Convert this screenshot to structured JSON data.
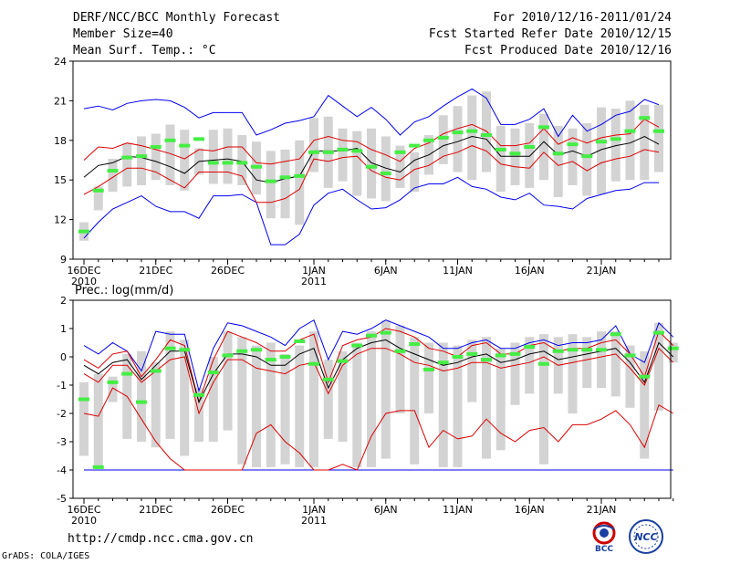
{
  "header": {
    "title": "DERF/NCC/BCC Monthly Forecast",
    "member_size": "Member Size=40",
    "variable": "Mean Surf. Temp.: °C",
    "period": "For 2010/12/16-2011/01/24",
    "start_date": "Fcst Started Refer Date 2010/12/15",
    "produced_date": "Fcst Produced Date 2010/12/16"
  },
  "footer": {
    "url": "http://cmdp.ncc.cma.gov.cn",
    "credit": "GrADS: COLA/IGES"
  },
  "logos": {
    "left_text": "BCC",
    "right_text": "NCC"
  },
  "colors": {
    "envelope": "#0000ee",
    "percentile": "#dd0000",
    "mean": "#000000",
    "observed": "#44ee44",
    "box": "#d3d3d3"
  },
  "chart_data": [
    {
      "type": "box",
      "title": "Mean Surf. Temp.: °C",
      "ylim": [
        9,
        24
      ],
      "yticks": [
        "9",
        "12",
        "15",
        "18",
        "21",
        "24"
      ],
      "xticks": [
        {
          "day": 0,
          "label": "16DEC",
          "sub": "2010"
        },
        {
          "day": 5,
          "label": "21DEC",
          "sub": ""
        },
        {
          "day": 10,
          "label": "26DEC",
          "sub": ""
        },
        {
          "day": 16,
          "label": "1JAN",
          "sub": "2011"
        },
        {
          "day": 21,
          "label": "6JAN",
          "sub": ""
        },
        {
          "day": 26,
          "label": "11JAN",
          "sub": ""
        },
        {
          "day": 31,
          "label": "16JAN",
          "sub": ""
        },
        {
          "day": 36,
          "label": "21JAN",
          "sub": ""
        }
      ],
      "max": [
        20.4,
        20.6,
        20.3,
        20.8,
        21.0,
        21.1,
        21.0,
        20.5,
        19.7,
        20.1,
        20.1,
        20.1,
        18.4,
        18.8,
        19.3,
        19.5,
        19.8,
        21.4,
        20.6,
        19.8,
        20.5,
        19.6,
        18.4,
        19.4,
        19.8,
        20.6,
        21.3,
        21.9,
        21.2,
        19.2,
        19.2,
        19.6,
        20.4,
        18.3,
        19.9,
        18.7,
        19.2,
        19.9,
        20.2,
        21.1,
        20.7
      ],
      "p90": [
        16.5,
        17.5,
        17.4,
        17.8,
        17.6,
        17.3,
        17.0,
        16.6,
        17.3,
        17.2,
        17.5,
        17.5,
        16.3,
        16.2,
        16.4,
        16.6,
        18.0,
        18.3,
        18.0,
        17.9,
        17.3,
        16.9,
        16.4,
        17.4,
        17.8,
        18.5,
        18.9,
        19.2,
        18.7,
        17.6,
        17.6,
        17.8,
        18.9,
        17.7,
        18.2,
        17.8,
        18.2,
        18.4,
        18.5,
        19.6,
        19.0
      ],
      "mean": [
        15.2,
        16.1,
        16.3,
        16.8,
        16.7,
        16.4,
        16.0,
        15.5,
        16.4,
        16.5,
        16.6,
        16.4,
        15.0,
        14.8,
        15.1,
        15.3,
        17.2,
        17.2,
        17.2,
        17.4,
        16.3,
        15.9,
        15.6,
        16.5,
        16.9,
        17.6,
        17.9,
        18.3,
        18.1,
        16.8,
        16.8,
        16.8,
        17.9,
        16.9,
        17.2,
        16.8,
        17.3,
        17.6,
        17.8,
        18.3,
        17.7
      ],
      "p10": [
        13.9,
        14.5,
        15.2,
        15.9,
        15.9,
        15.6,
        15.0,
        14.4,
        15.6,
        15.6,
        15.6,
        15.3,
        13.3,
        13.3,
        13.6,
        14.3,
        16.6,
        16.4,
        16.7,
        16.8,
        15.7,
        15.2,
        15.0,
        15.8,
        16.1,
        16.8,
        17.1,
        17.6,
        17.2,
        16.2,
        16.0,
        15.9,
        17.1,
        16.1,
        16.4,
        15.7,
        16.3,
        16.6,
        16.8,
        17.3,
        17.1
      ],
      "min": [
        10.6,
        11.8,
        12.8,
        13.3,
        13.8,
        13.0,
        12.6,
        12.6,
        12.1,
        13.8,
        13.8,
        13.9,
        13.3,
        10.1,
        10.1,
        10.9,
        13.1,
        14.0,
        14.3,
        13.5,
        12.8,
        12.9,
        13.5,
        14.4,
        14.7,
        14.7,
        15.2,
        14.5,
        14.3,
        13.7,
        13.5,
        14.0,
        13.1,
        13.0,
        12.8,
        13.6,
        13.9,
        14.2,
        14.3,
        14.8,
        14.8
      ],
      "box_top": [
        11.8,
        14.5,
        16.6,
        17.8,
        18.3,
        18.5,
        19.2,
        18.8,
        17.4,
        18.8,
        18.9,
        18.4,
        17.9,
        17.2,
        17.3,
        18.0,
        19.7,
        19.8,
        18.9,
        18.7,
        18.9,
        18.3,
        17.6,
        17.1,
        18.4,
        19.9,
        20.6,
        21.4,
        21.7,
        19.1,
        18.9,
        19.3,
        20.0,
        19.1,
        18.9,
        19.3,
        20.5,
        20.4,
        21.0,
        20.7,
        20.7
      ],
      "box_bottom": [
        10.4,
        12.7,
        14.1,
        14.5,
        14.6,
        15.0,
        14.6,
        14.2,
        15.4,
        14.7,
        14.7,
        14.6,
        13.9,
        12.1,
        12.1,
        11.6,
        15.6,
        14.4,
        14.9,
        13.8,
        13.6,
        13.4,
        14.4,
        14.1,
        15.4,
        16.2,
        15.6,
        15.0,
        15.6,
        14.1,
        14.6,
        14.4,
        15.0,
        13.7,
        14.6,
        13.8,
        13.9,
        14.9,
        15.0,
        15.0,
        15.6
      ],
      "observed": [
        11.1,
        14.2,
        15.7,
        16.7,
        16.8,
        17.5,
        18.0,
        17.6,
        18.1,
        16.3,
        16.3,
        16.3,
        16.0,
        14.9,
        15.2,
        15.3,
        17.1,
        17.1,
        17.3,
        17.2,
        16.0,
        15.5,
        17.1,
        17.6,
        18.0,
        18.2,
        18.6,
        18.7,
        18.4,
        17.3,
        17.0,
        17.5,
        19.0,
        17.0,
        17.7,
        16.8,
        17.9,
        18.1,
        18.7,
        19.7,
        18.7
      ]
    },
    {
      "type": "box",
      "title": "Prec.: log(mm/d)",
      "ylim": [
        -5,
        2
      ],
      "yticks": [
        "-5",
        "-4",
        "-3",
        "-2",
        "-1",
        "0",
        "1",
        "2"
      ],
      "xticks": [
        {
          "day": 0,
          "label": "16DEC",
          "sub": "2010"
        },
        {
          "day": 5,
          "label": "21DEC",
          "sub": ""
        },
        {
          "day": 10,
          "label": "26DEC",
          "sub": ""
        },
        {
          "day": 16,
          "label": "1JAN",
          "sub": "2011"
        },
        {
          "day": 21,
          "label": "6JAN",
          "sub": ""
        },
        {
          "day": 26,
          "label": "11JAN",
          "sub": ""
        },
        {
          "day": 31,
          "label": "16JAN",
          "sub": ""
        },
        {
          "day": 36,
          "label": "21JAN",
          "sub": ""
        }
      ],
      "max": [
        0.4,
        0.1,
        0.5,
        0.2,
        -0.5,
        0.9,
        0.8,
        0.8,
        -1.2,
        0.3,
        1.2,
        1.1,
        0.9,
        0.7,
        0.4,
        1.0,
        1.3,
        -0.1,
        0.9,
        0.8,
        1.0,
        1.3,
        1.1,
        0.9,
        0.7,
        0.3,
        0.3,
        0.5,
        0.6,
        0.3,
        0.3,
        0.5,
        0.6,
        0.4,
        0.5,
        0.5,
        0.6,
        1.1,
        0.1,
        -0.2,
        1.2,
        0.7
      ],
      "p90": [
        -0.1,
        -0.4,
        0.1,
        0.2,
        -0.7,
        -0.1,
        0.6,
        0.4,
        -1.6,
        -0.1,
        0.9,
        0.7,
        0.5,
        0.2,
        0.2,
        0.6,
        0.8,
        -0.9,
        0.4,
        0.6,
        0.7,
        1.0,
        0.9,
        0.7,
        0.3,
        0.2,
        0.0,
        0.4,
        0.5,
        0.1,
        0.1,
        0.4,
        0.5,
        0.2,
        0.3,
        0.3,
        0.5,
        0.6,
        0.1,
        -0.7,
        0.9,
        0.4
      ],
      "mean": [
        -0.3,
        -0.6,
        -0.2,
        -0.1,
        -0.8,
        -0.3,
        0.2,
        0.2,
        -1.6,
        -0.6,
        0.1,
        0.1,
        0.0,
        -0.3,
        -0.3,
        0.1,
        0.3,
        -1.1,
        -0.1,
        0.3,
        0.5,
        0.6,
        0.3,
        0.1,
        -0.1,
        -0.3,
        -0.2,
        0.0,
        0.1,
        -0.2,
        -0.1,
        0.1,
        0.2,
        -0.1,
        0.0,
        0.1,
        0.2,
        0.3,
        -0.2,
        -0.9,
        0.5,
        0.0
      ],
      "p10": [
        -0.6,
        -0.9,
        -0.3,
        -0.3,
        -0.9,
        -0.5,
        -0.1,
        0.0,
        -2.0,
        -0.9,
        -0.1,
        -0.1,
        -0.4,
        -0.5,
        -0.6,
        -0.3,
        -0.2,
        -1.3,
        -0.3,
        0.1,
        0.3,
        0.3,
        0.1,
        -0.2,
        -0.3,
        -0.5,
        -0.4,
        -0.2,
        -0.2,
        -0.4,
        -0.3,
        -0.2,
        0.0,
        -0.3,
        -0.2,
        -0.1,
        0.0,
        0.1,
        -0.4,
        -1.0,
        0.3,
        -0.2
      ],
      "p5": [
        -2.0,
        -2.1,
        -1.1,
        -1.4,
        -2.2,
        -3.0,
        -3.6,
        -4.0,
        -4.0,
        -4.0,
        -4.0,
        -4.0,
        -2.7,
        -2.4,
        -3.0,
        -3.4,
        -4.0,
        -4.0,
        -3.8,
        -4.0,
        -2.8,
        -2.0,
        -1.9,
        -1.9,
        -3.2,
        -2.6,
        -2.9,
        -2.8,
        -2.2,
        -2.7,
        -3.0,
        -2.6,
        -2.5,
        -3.0,
        -2.4,
        -2.4,
        -2.2,
        -1.9,
        -2.4,
        -3.2,
        -1.7,
        -2.0
      ],
      "min": [
        -4.0,
        -4.0,
        -4.0,
        -4.0,
        -4.0,
        -4.0,
        -4.0,
        -4.0,
        -4.0,
        -4.0,
        -4.0,
        -4.0,
        -4.0,
        -4.0,
        -4.0,
        -4.0,
        -4.0,
        -4.0,
        -4.0,
        -4.0,
        -4.0,
        -4.0,
        -4.0,
        -4.0,
        -4.0,
        -4.0,
        -4.0,
        -4.0,
        -4.0,
        -4.0,
        -4.0,
        -4.0,
        -4.0,
        -4.0,
        -4.0,
        -4.0,
        -4.0,
        -4.0,
        -4.0,
        -4.0,
        -4.0,
        -4.0
      ],
      "box_top": [
        -0.9,
        -0.6,
        -0.7,
        0.1,
        0.2,
        -0.2,
        0.9,
        0.6,
        -1.1,
        0.0,
        0.9,
        0.7,
        0.4,
        0.5,
        0.1,
        0.4,
        0.9,
        -0.1,
        0.2,
        0.5,
        0.9,
        1.3,
        1.1,
        0.7,
        0.5,
        0.5,
        0.4,
        0.6,
        0.7,
        0.3,
        0.5,
        0.7,
        0.8,
        0.7,
        0.8,
        0.7,
        0.9,
        0.9,
        0.4,
        0.2,
        1.2,
        0.5
      ],
      "box_bottom": [
        -3.5,
        -3.9,
        -1.6,
        -2.9,
        -3.0,
        -3.2,
        -2.9,
        -3.5,
        -3.0,
        -3.0,
        -2.6,
        -3.8,
        -3.9,
        -3.9,
        -3.8,
        -3.9,
        -3.9,
        -2.9,
        -3.0,
        -3.9,
        -3.9,
        -3.6,
        -2.0,
        -3.8,
        -2.0,
        -3.9,
        -3.9,
        -1.6,
        -3.6,
        -3.3,
        -1.7,
        -1.3,
        -3.8,
        -1.3,
        -2.0,
        -1.1,
        -1.1,
        -1.4,
        -1.8,
        -3.6,
        -1.9,
        -0.2
      ],
      "observed": [
        -1.5,
        -3.9,
        -0.9,
        -0.6,
        -1.6,
        -0.5,
        0.3,
        0.25,
        -1.35,
        -0.55,
        0.05,
        0.2,
        0.25,
        -0.1,
        0.0,
        0.55,
        -0.25,
        -0.8,
        -0.15,
        0.4,
        0.75,
        0.85,
        0.2,
        0.45,
        -0.45,
        -0.2,
        0.0,
        0.1,
        -0.1,
        0.05,
        0.1,
        0.35,
        -0.25,
        0.2,
        0.25,
        0.25,
        0.25,
        0.8,
        0.05,
        -0.7,
        0.85,
        0.3
      ]
    }
  ]
}
